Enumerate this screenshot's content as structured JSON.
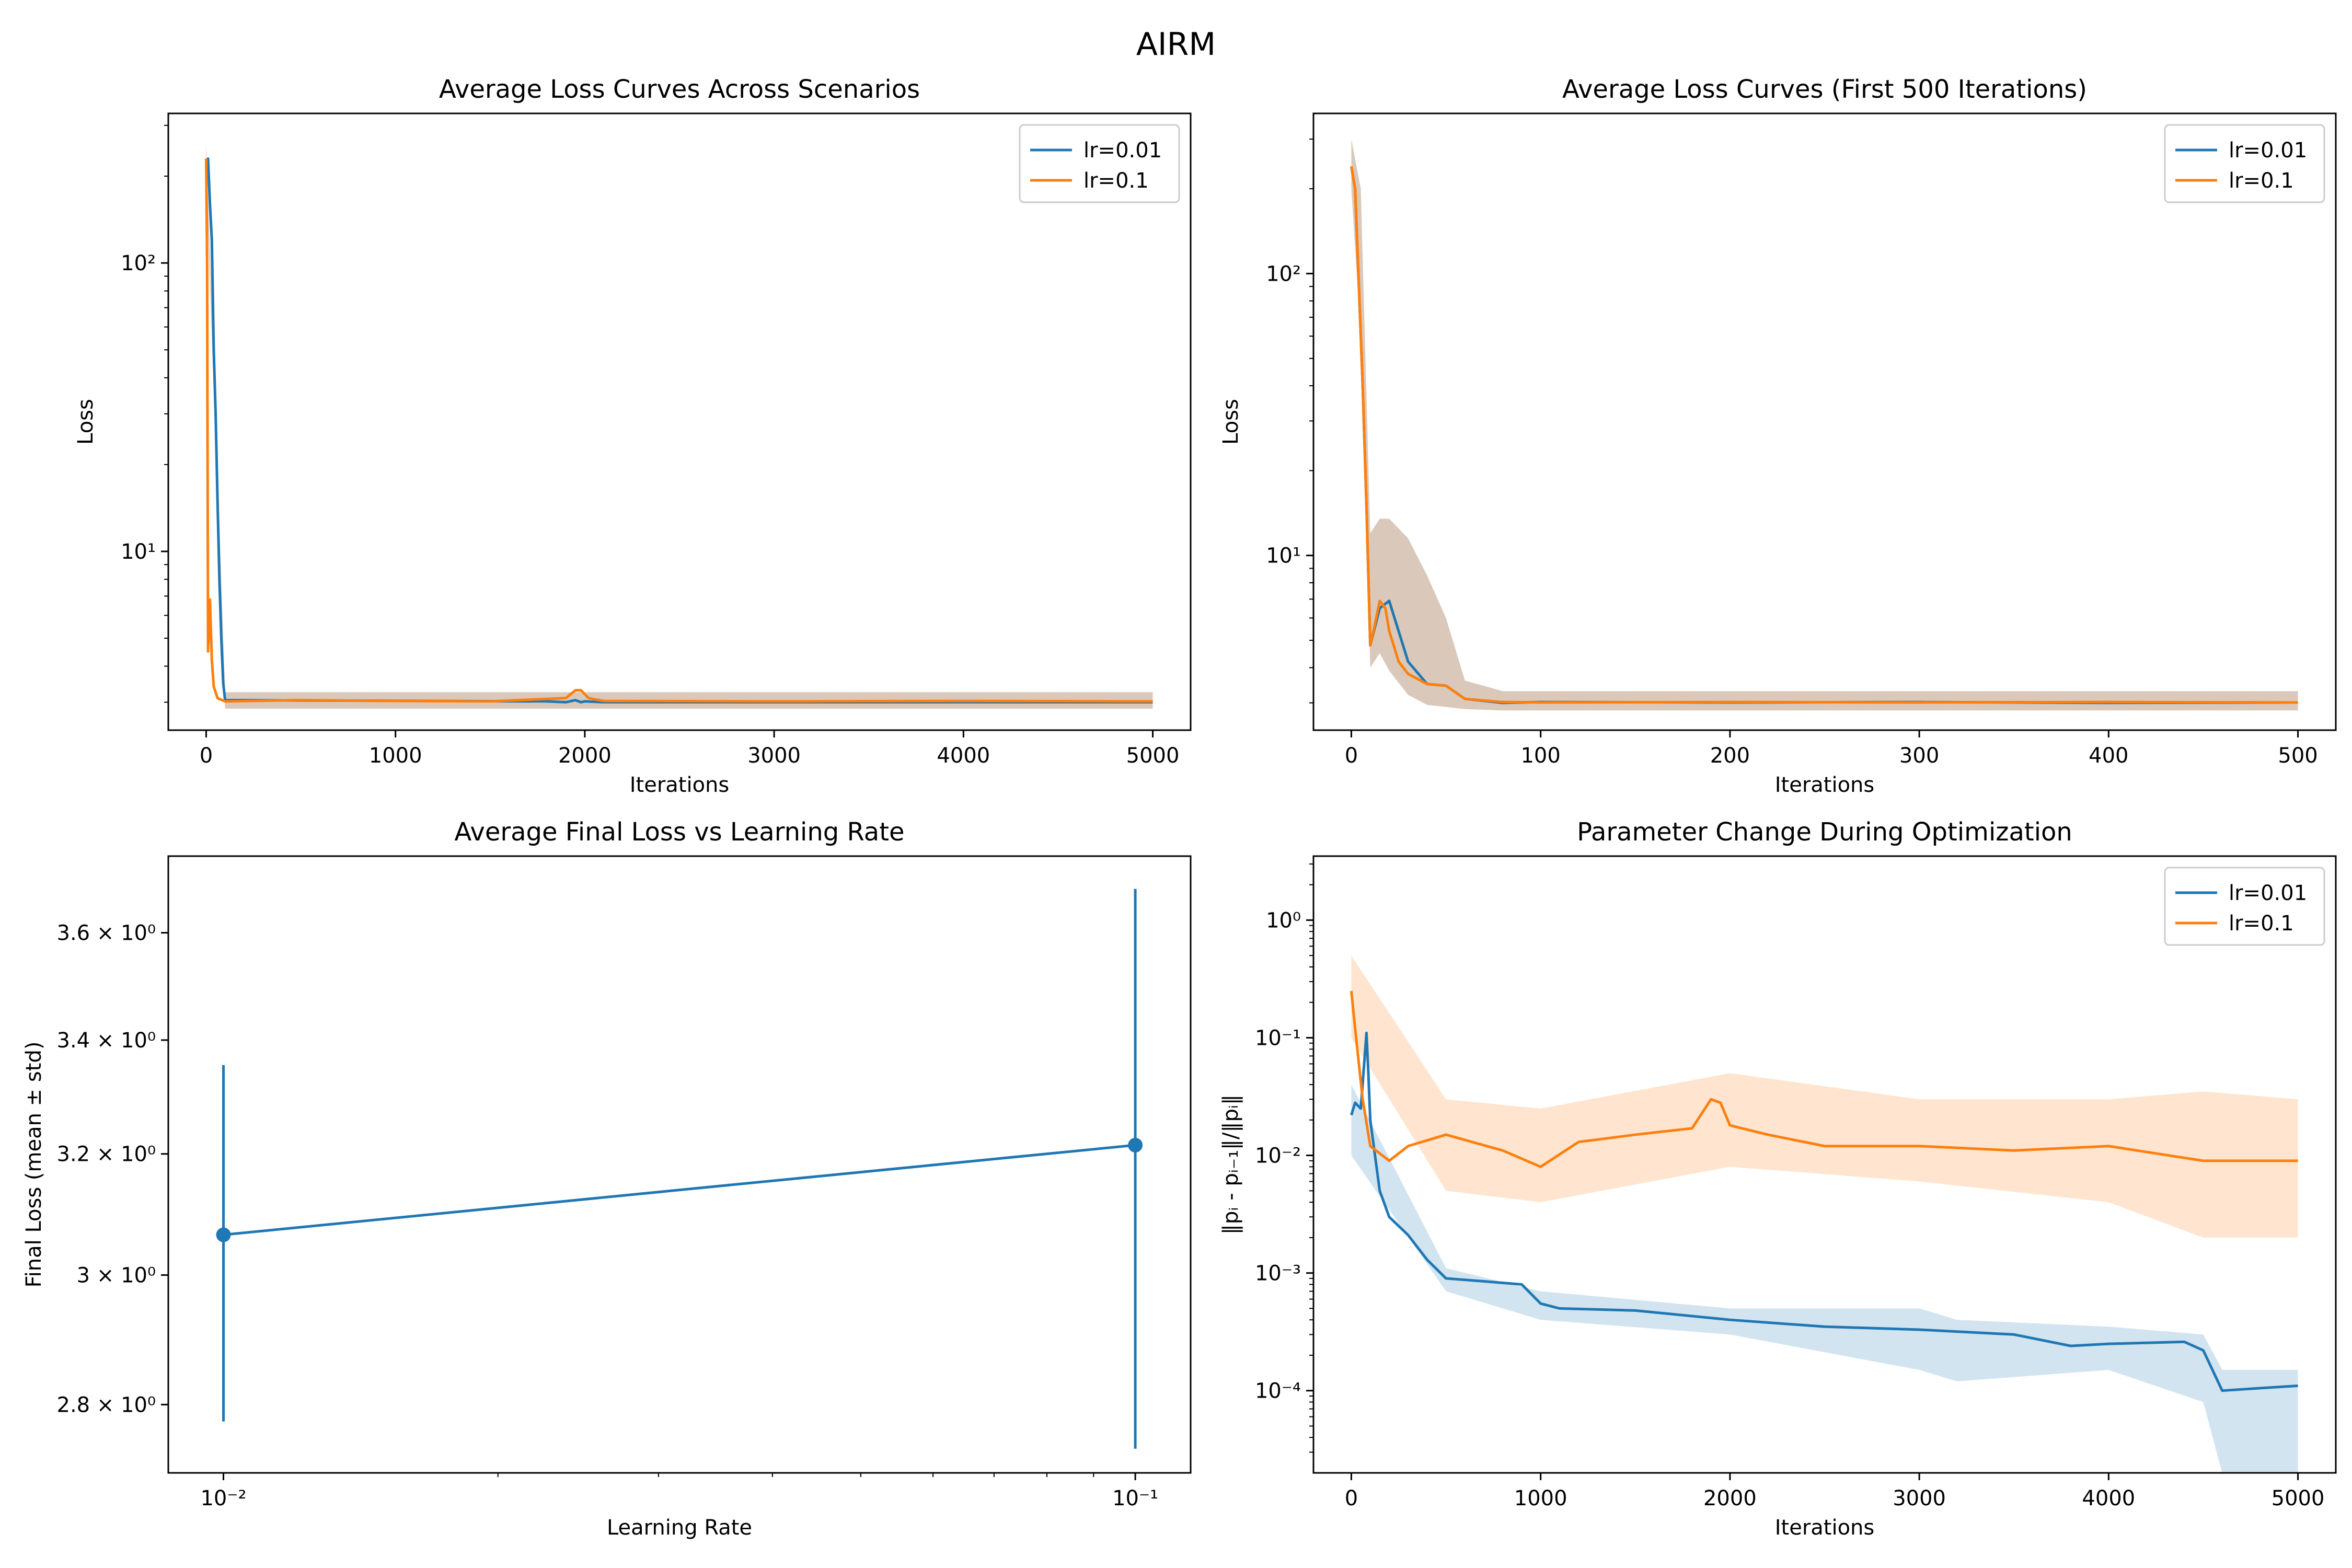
{
  "figure": {
    "suptitle": "AIRM"
  },
  "colors": {
    "lr_0_01": "#1f77b4",
    "lr_0_1": "#ff7f0e",
    "band_mix": "#d4bfae",
    "axis": "#000000",
    "background": "#ffffff"
  },
  "chart_data": [
    {
      "type": "line",
      "title": "Average Loss Curves Across Scenarios",
      "xlabel": "Iterations",
      "ylabel": "Loss",
      "xscale": "linear",
      "yscale": "log",
      "xlim": [
        -200,
        5200
      ],
      "ylim": [
        2.4,
        330
      ],
      "xticks": [
        0,
        1000,
        2000,
        3000,
        4000,
        5000
      ],
      "xtick_labels": [
        "0",
        "1000",
        "2000",
        "3000",
        "4000",
        "5000"
      ],
      "yticks": [
        10,
        100
      ],
      "ytick_labels": [
        "10¹",
        "10²"
      ],
      "legend": {
        "position": "upper right",
        "entries": [
          "lr=0.01",
          "lr=0.1"
        ]
      },
      "grid": false,
      "series": [
        {
          "name": "lr=0.01",
          "color": "#1f77b4",
          "x": [
            0,
            10,
            20,
            30,
            40,
            50,
            60,
            70,
            80,
            90,
            100,
            1800,
            1900,
            1950,
            1980,
            2000,
            2100,
            5000
          ],
          "y": [
            220,
            230,
            160,
            120,
            50,
            30,
            15,
            8,
            5,
            3.5,
            3.05,
            3.02,
            3.0,
            3.05,
            3.0,
            3.02,
            3.0,
            3.0
          ]
        },
        {
          "name": "lr=0.1",
          "color": "#ff7f0e",
          "x": [
            0,
            5,
            10,
            15,
            20,
            30,
            40,
            60,
            100,
            500,
            1000,
            1500,
            1900,
            1950,
            1980,
            2020,
            2100,
            3000,
            4000,
            5000
          ],
          "y": [
            230,
            100,
            4.5,
            5.5,
            6.8,
            4.2,
            3.4,
            3.1,
            3.02,
            3.05,
            3.03,
            3.02,
            3.1,
            3.3,
            3.3,
            3.1,
            3.03,
            3.02,
            3.03,
            3.02
          ]
        }
      ],
      "bands": [
        {
          "name": "lr=0.1 std",
          "x": [
            0,
            100,
            5000
          ],
          "y_low": [
            200,
            2.85,
            2.85
          ],
          "y_high": [
            260,
            3.25,
            3.25
          ]
        }
      ]
    },
    {
      "type": "line",
      "title": "Average Loss Curves (First 500 Iterations)",
      "xlabel": "Iterations",
      "ylabel": "Loss",
      "xscale": "linear",
      "yscale": "log",
      "xlim": [
        -20,
        520
      ],
      "ylim": [
        2.4,
        370
      ],
      "xticks": [
        0,
        100,
        200,
        300,
        400,
        500
      ],
      "xtick_labels": [
        "0",
        "100",
        "200",
        "300",
        "400",
        "500"
      ],
      "yticks": [
        10,
        100
      ],
      "ytick_labels": [
        "10¹",
        "10²"
      ],
      "legend": {
        "position": "upper right",
        "entries": [
          "lr=0.01",
          "lr=0.1"
        ]
      },
      "grid": false,
      "series": [
        {
          "name": "lr=0.01",
          "color": "#1f77b4",
          "x": [
            0,
            2,
            4,
            6,
            8,
            10,
            15,
            20,
            30,
            40,
            50,
            60,
            80,
            100,
            200,
            300,
            400,
            500
          ],
          "y": [
            240,
            200,
            90,
            40,
            15,
            4.8,
            6.5,
            6.9,
            4.2,
            3.5,
            3.45,
            3.1,
            3.0,
            3.02,
            3.01,
            3.02,
            3.0,
            3.01
          ]
        },
        {
          "name": "lr=0.1",
          "color": "#ff7f0e",
          "x": [
            0,
            2,
            4,
            6,
            8,
            10,
            12,
            15,
            18,
            20,
            25,
            30,
            40,
            50,
            60,
            80,
            100,
            200,
            300,
            400,
            500
          ],
          "y": [
            240,
            200,
            90,
            40,
            15,
            4.8,
            5.5,
            6.9,
            6.5,
            5.4,
            4.2,
            3.8,
            3.5,
            3.45,
            3.1,
            3.02,
            3.01,
            3.02,
            3.01,
            3.02,
            3.01
          ]
        }
      ],
      "bands": [
        {
          "name": "lr=0.1 std",
          "x": [
            0,
            5,
            10,
            15,
            20,
            30,
            40,
            50,
            60,
            80,
            500
          ],
          "y_low": [
            200,
            60,
            4.0,
            4.5,
            3.9,
            3.2,
            2.95,
            2.9,
            2.85,
            2.82,
            2.82
          ],
          "y_high": [
            300,
            200,
            12,
            13.5,
            13.5,
            11.5,
            8.5,
            6.0,
            3.6,
            3.3,
            3.3
          ]
        }
      ]
    },
    {
      "type": "line",
      "title": "Average Final Loss vs Learning Rate",
      "xlabel": "Learning Rate",
      "ylabel": "Final Loss (mean ± std)",
      "xscale": "log",
      "yscale": "log",
      "xlim": [
        0.0087,
        0.115
      ],
      "ylim": [
        2.7,
        3.75
      ],
      "xticks": [
        0.01,
        0.1
      ],
      "xtick_labels": [
        "10⁻²",
        "10⁻¹"
      ],
      "yticks": [
        2.8,
        3.0,
        3.2,
        3.4,
        3.6
      ],
      "ytick_labels": [
        "2.8 × 10⁰",
        "3 × 10⁰",
        "3.2 × 10⁰",
        "3.4 × 10⁰",
        "3.6 × 10⁰"
      ],
      "grid": false,
      "series": [
        {
          "name": "",
          "color": "#1f77b4",
          "x": [
            0.01,
            0.1
          ],
          "y": [
            3.065,
            3.215
          ],
          "err_low": [
            2.775,
            2.735
          ],
          "err_high": [
            3.355,
            3.685
          ]
        }
      ]
    },
    {
      "type": "line",
      "title": "Parameter Change During Optimization",
      "xlabel": "Iterations",
      "ylabel": "‖pᵢ - pᵢ₋₁‖/‖pᵢ‖",
      "xscale": "linear",
      "yscale": "log",
      "xlim": [
        -200,
        5200
      ],
      "ylim": [
        2e-05,
        3.5
      ],
      "xticks": [
        0,
        1000,
        2000,
        3000,
        4000,
        5000
      ],
      "xtick_labels": [
        "0",
        "1000",
        "2000",
        "3000",
        "4000",
        "5000"
      ],
      "yticks": [
        0.0001,
        0.001,
        0.01,
        0.1,
        1
      ],
      "ytick_labels": [
        "10⁻⁴",
        "10⁻³",
        "10⁻²",
        "10⁻¹",
        "10⁰"
      ],
      "legend": {
        "position": "upper right",
        "entries": [
          "lr=0.01",
          "lr=0.1"
        ]
      },
      "grid": false,
      "series": [
        {
          "name": "lr=0.01",
          "color": "#1f77b4",
          "x": [
            0,
            20,
            50,
            80,
            90,
            100,
            150,
            200,
            300,
            400,
            500,
            700,
            900,
            1000,
            1100,
            1500,
            2000,
            2500,
            3000,
            3500,
            3800,
            4000,
            4400,
            4500,
            4600,
            4800,
            5000
          ],
          "y": [
            0.022,
            0.028,
            0.025,
            0.11,
            0.05,
            0.02,
            0.005,
            0.003,
            0.0021,
            0.0013,
            0.0009,
            0.00085,
            0.0008,
            0.00055,
            0.0005,
            0.00048,
            0.0004,
            0.00035,
            0.00033,
            0.0003,
            0.00024,
            0.00025,
            0.00026,
            0.00022,
            0.0001,
            0.000105,
            0.00011
          ]
        },
        {
          "name": "lr=0.1",
          "color": "#ff7f0e",
          "x": [
            0,
            20,
            60,
            100,
            200,
            300,
            500,
            800,
            1000,
            1200,
            1500,
            1800,
            1900,
            1950,
            2000,
            2200,
            2500,
            3000,
            3500,
            4000,
            4500,
            5000
          ],
          "y": [
            0.25,
            0.12,
            0.03,
            0.012,
            0.009,
            0.012,
            0.015,
            0.011,
            0.008,
            0.013,
            0.015,
            0.017,
            0.03,
            0.028,
            0.018,
            0.015,
            0.012,
            0.012,
            0.011,
            0.012,
            0.009,
            0.009
          ]
        }
      ],
      "bands": [
        {
          "name": "lr=0.01 std",
          "x": [
            0,
            500,
            1000,
            2000,
            3000,
            3200,
            4000,
            4500,
            4600,
            5000
          ],
          "y_low": [
            0.01,
            0.0007,
            0.0004,
            0.0003,
            0.00015,
            0.00012,
            0.00015,
            8e-05,
            2e-05,
            2e-05
          ],
          "y_high": [
            0.04,
            0.0011,
            0.0007,
            0.0005,
            0.0005,
            0.0004,
            0.00035,
            0.0003,
            0.00015,
            0.00015
          ]
        },
        {
          "name": "lr=0.1 std",
          "x": [
            0,
            500,
            1000,
            2000,
            3000,
            4000,
            4500,
            5000
          ],
          "y_low": [
            0.1,
            0.005,
            0.004,
            0.008,
            0.006,
            0.004,
            0.002,
            0.002
          ],
          "y_high": [
            0.5,
            0.03,
            0.025,
            0.05,
            0.03,
            0.03,
            0.035,
            0.03
          ]
        }
      ]
    }
  ]
}
